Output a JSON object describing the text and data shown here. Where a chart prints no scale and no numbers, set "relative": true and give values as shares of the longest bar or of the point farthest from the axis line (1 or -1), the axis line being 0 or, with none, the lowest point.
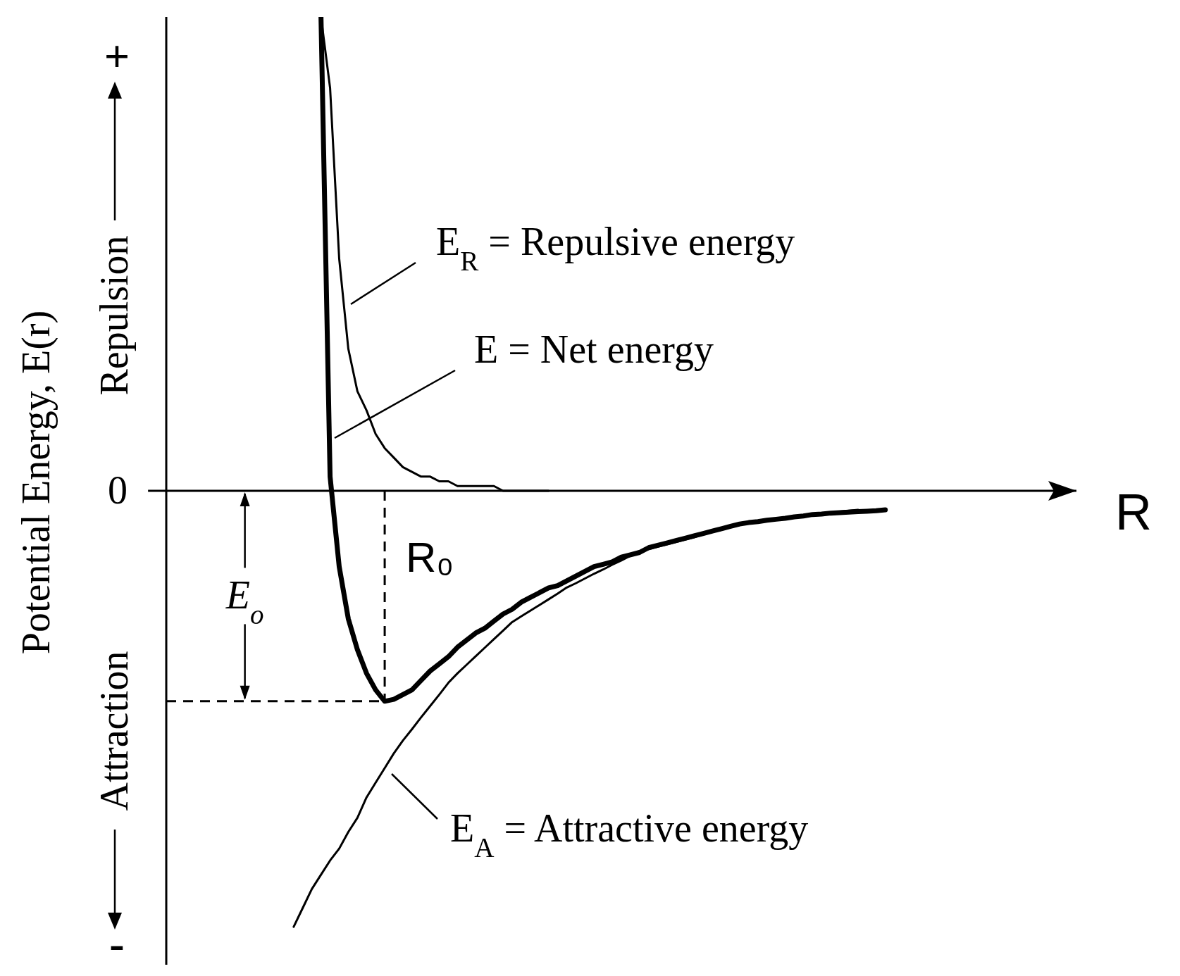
{
  "chart_data": {
    "type": "line",
    "relative": true,
    "xlabel": "R",
    "ylabel": "Potential Energy, E(r)",
    "marker": "none",
    "categories": [
      null,
      null,
      null,
      null,
      null,
      null,
      null,
      null,
      null,
      null,
      null,
      null,
      null,
      null,
      null,
      null,
      null,
      null,
      null,
      null,
      null,
      null,
      null,
      null,
      null,
      null,
      null,
      null,
      null,
      null,
      null,
      null,
      null,
      null,
      null,
      null,
      null,
      null,
      null,
      null,
      null,
      null,
      null,
      null,
      null,
      null,
      null,
      null,
      null,
      null,
      null,
      null,
      null,
      null,
      null,
      null,
      null,
      null,
      null,
      null,
      null,
      null,
      null,
      null,
      null,
      null,
      null,
      null,
      null,
      null,
      null,
      null,
      null,
      null,
      null,
      null,
      null,
      null,
      null,
      null,
      null,
      null,
      null,
      null,
      null,
      null,
      null,
      null,
      null,
      null,
      null,
      null,
      null,
      null,
      null,
      null,
      null,
      null,
      null,
      null,
      null
    ],
    "series": [
      {
        "color": "#000000",
        "values": [
          null,
          null,
          null,
          null,
          null,
          null,
          null,
          null,
          null,
          null,
          null,
          null,
          null,
          null,
          null,
          null,
          null,
          1,
          0.85,
          0.49,
          0.3,
          0.21,
          0.17,
          0.12,
          0.09,
          0.07,
          0.05,
          0.04,
          0.03,
          0.03,
          0.02,
          0.02,
          0.01,
          0.01,
          0.01,
          0.01,
          0.01,
          0,
          0,
          0,
          0,
          0,
          0,
          null,
          null,
          null,
          null,
          null,
          null,
          null,
          null,
          null,
          null,
          null,
          null,
          null,
          null,
          null,
          null,
          null,
          null,
          null,
          null,
          null,
          null,
          null,
          null,
          null,
          null,
          null,
          null,
          null,
          null,
          null,
          null,
          null,
          null,
          null,
          null,
          null,
          null,
          null,
          null,
          null,
          null,
          null,
          null,
          null,
          null,
          null,
          null,
          null,
          null,
          null,
          null,
          null,
          null,
          null,
          null,
          null,
          null
        ]
      },
      {
        "color": "#000000",
        "values": [
          null,
          null,
          null,
          null,
          null,
          null,
          null,
          null,
          null,
          null,
          null,
          null,
          null,
          null,
          null,
          null,
          null,
          1,
          0.03,
          -0.16,
          -0.27,
          -0.335,
          -0.385,
          -0.42,
          -0.444,
          -0.44,
          -0.43,
          -0.42,
          -0.4,
          -0.38,
          -0.365,
          -0.35,
          -0.33,
          -0.315,
          -0.3,
          -0.29,
          -0.275,
          -0.26,
          -0.25,
          -0.235,
          -0.225,
          -0.215,
          -0.205,
          -0.2,
          -0.19,
          -0.18,
          -0.17,
          -0.16,
          -0.155,
          -0.15,
          -0.14,
          -0.135,
          -0.13,
          -0.12,
          -0.115,
          -0.11,
          -0.105,
          -0.1,
          -0.095,
          -0.09,
          -0.085,
          -0.08,
          -0.075,
          -0.07,
          -0.067,
          -0.065,
          -0.062,
          -0.06,
          -0.058,
          -0.055,
          -0.053,
          -0.05,
          -0.049,
          -0.047,
          -0.046,
          -0.045,
          -0.044,
          -0.043,
          -0.042,
          -0.04,
          null,
          null,
          null,
          null,
          null,
          null,
          null,
          null,
          null,
          null,
          null,
          null,
          null,
          null,
          null,
          null,
          null,
          null,
          null,
          null,
          null
        ]
      },
      {
        "color": "#000000",
        "values": [
          null,
          null,
          null,
          null,
          null,
          null,
          null,
          null,
          null,
          null,
          null,
          null,
          null,
          null,
          -0.92,
          -0.88,
          -0.84,
          -0.81,
          -0.78,
          -0.755,
          -0.72,
          -0.69,
          -0.647,
          -0.616,
          -0.585,
          -0.554,
          -0.527,
          -0.503,
          -0.478,
          -0.454,
          -0.43,
          -0.405,
          -0.385,
          -0.367,
          -0.349,
          -0.331,
          -0.313,
          -0.295,
          -0.277,
          -0.265,
          -0.253,
          -0.241,
          -0.229,
          -0.217,
          -0.204,
          -0.195,
          -0.185,
          -0.175,
          -0.166,
          -0.156,
          -0.147,
          -0.137,
          -0.128,
          -0.123,
          -0.118,
          -0.113,
          -0.108,
          -0.103,
          -0.098,
          -0.092,
          -0.087,
          -0.082,
          -0.077,
          -0.072,
          -0.067,
          -0.065,
          -0.062,
          -0.06,
          -0.058,
          -0.055,
          -0.053,
          -0.051,
          -0.049,
          -0.046,
          -0.044,
          -0.042,
          -0.04,
          null,
          null,
          null,
          null,
          null,
          null,
          null,
          null,
          null,
          null,
          null,
          null,
          null,
          null,
          null,
          null,
          null,
          null,
          null,
          null,
          null,
          null,
          null,
          null
        ]
      }
    ],
    "ref_lines": [
      {
        "axis": "y",
        "value": 0,
        "label": "0",
        "line_style": "solid"
      },
      {
        "axis": "y",
        "value": -0.444,
        "line_style": "dashed"
      }
    ],
    "annotations": [
      "E$_{R}$ = Repulsive energy",
      "E = Net energy",
      "E$_{A}$ = Attractive energy",
      "R₀",
      "E$_{o}$",
      "Repulsion",
      "Attraction",
      "+",
      "-"
    ]
  }
}
